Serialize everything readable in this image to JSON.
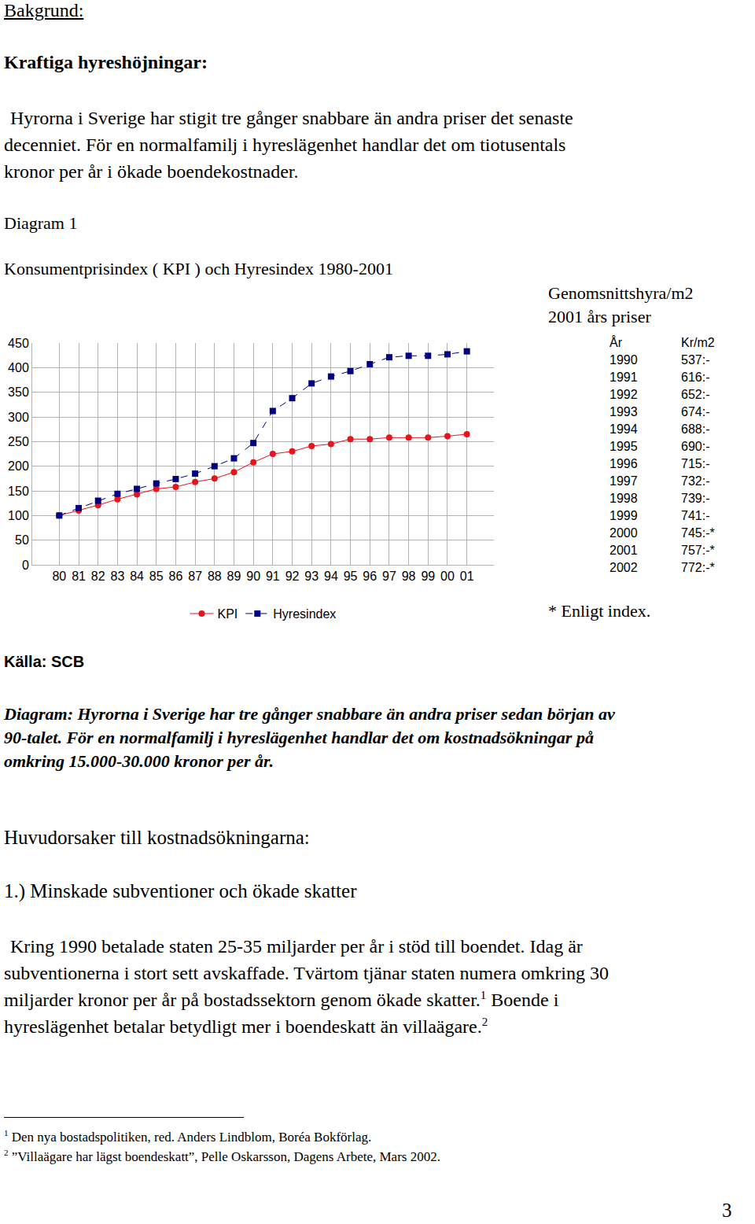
{
  "header": "Bakgrund:",
  "heading": "Kraftiga hyreshöjningar:",
  "intro_lines": [
    "Hyrorna i Sverige har stigit tre gånger snabbare än andra priser det senaste",
    "decenniet. För en normalfamilj i hyreslägenhet handlar det om tiotusentals",
    "kronor per år i ökade boendekostnader."
  ],
  "diagram_label": "Diagram 1",
  "chart_data": {
    "type": "line",
    "title": "Konsumentprisindex ( KPI ) och Hyresindex 1980-2001",
    "categories": [
      "80",
      "81",
      "82",
      "83",
      "84",
      "85",
      "86",
      "87",
      "88",
      "89",
      "90",
      "91",
      "92",
      "93",
      "94",
      "95",
      "96",
      "97",
      "98",
      "99",
      "00",
      "01"
    ],
    "series": [
      {
        "name": "KPI",
        "color": "#e8141b",
        "marker": "circle",
        "line_style": "solid",
        "values": [
          100,
          110,
          121,
          133,
          143,
          154,
          158,
          168,
          175,
          188,
          208,
          225,
          230,
          241,
          245,
          255,
          255,
          258,
          258,
          258,
          261,
          265
        ]
      },
      {
        "name": "Hyresindex",
        "color": "#000080",
        "marker": "square",
        "line_style": "dash",
        "values": [
          100,
          115,
          130,
          144,
          154,
          165,
          174,
          185,
          200,
          216,
          247,
          312,
          338,
          368,
          382,
          393,
          407,
          421,
          424,
          424,
          427,
          433
        ]
      }
    ],
    "ylim": [
      0,
      450
    ],
    "yticks": [
      0,
      50,
      100,
      150,
      200,
      250,
      300,
      350,
      400,
      450
    ],
    "grid": true,
    "legend": "bottom"
  },
  "source": "Källa: SCB",
  "rent_table": {
    "title_lines": [
      "Genomsnittshyra/m2",
      "2001 års priser"
    ],
    "header": [
      "År",
      "Kr/m2"
    ],
    "rows": [
      [
        "1990",
        "537:-"
      ],
      [
        "1991",
        "616:-"
      ],
      [
        "1992",
        "652:-"
      ],
      [
        "1993",
        "674:-"
      ],
      [
        "1994",
        "688:-"
      ],
      [
        "1995",
        "690:-"
      ],
      [
        "1996",
        "715:-"
      ],
      [
        "1997",
        "732:-"
      ],
      [
        "1998",
        "739:-"
      ],
      [
        "1999",
        "741:-"
      ],
      [
        "2000",
        "745:-*"
      ],
      [
        "2001",
        "757:-*"
      ],
      [
        "2002",
        "772:-*"
      ]
    ],
    "note": "* Enligt index."
  },
  "caption_lines": [
    "Diagram: Hyrorna i Sverige har tre gånger snabbare än andra priser sedan början av",
    "90-talet. För en normalfamilj i hyreslägenhet handlar det om kostnadsökningar på",
    "omkring 15.000-30.000 kronor per år."
  ],
  "section_heading": "Huvudorsaker till kostnadsökningarna:",
  "subheading": "1.) Minskade subventioner och ökade skatter",
  "paragraph_lines": [
    [
      {
        "text": "Kring 1990 betalade staten 25-35 miljarder per år i stöd till boendet. Idag är"
      }
    ],
    [
      {
        "text": "subventionerna i stort sett avskaffade. Tvärtom tjänar staten numera omkring 30"
      }
    ],
    [
      {
        "text": "miljarder kronor per år på bostadssektorn genom ökade skatter."
      },
      {
        "sup": "1"
      },
      {
        "text": " Boende i"
      }
    ],
    [
      {
        "text": "hyreslägenhet betalar betydligt mer i boendeskatt än villaägare."
      },
      {
        "sup": "2"
      }
    ]
  ],
  "footnotes": [
    {
      "mark": "1",
      "text": "Den nya bostadspolitiken, red. Anders Lindblom, Boréa Bokförlag."
    },
    {
      "mark": "2",
      "text": "”Villaägare har lägst boendeskatt”, Pelle Oskarsson, Dagens Arbete, Mars 2002."
    }
  ],
  "page_number": "3"
}
